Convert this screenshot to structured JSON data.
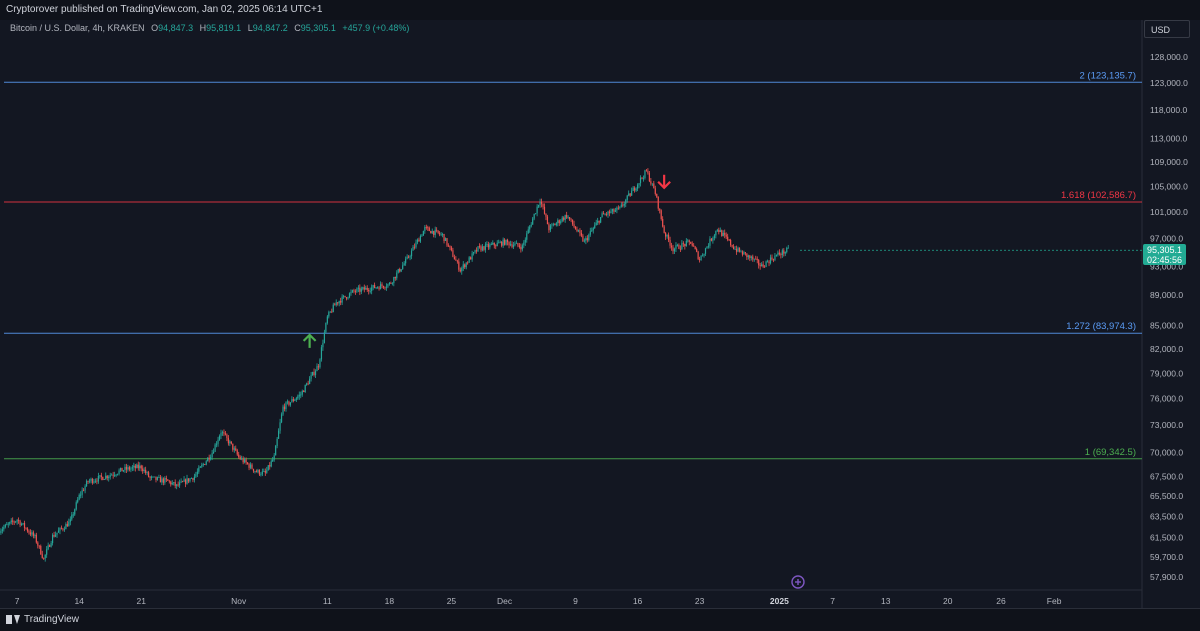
{
  "header": {
    "published_text": "Cryptorover published on TradingView.com, Jan 02, 2025 06:14 UTC+1"
  },
  "symbol": {
    "title": "Bitcoin / U.S. Dollar, 4h, KRAKEN",
    "open_key": "O",
    "open": "94,847.3",
    "high_key": "H",
    "high": "95,819.1",
    "low_key": "L",
    "low": "94,847.2",
    "close_key": "C",
    "close": "95,305.1",
    "change": "+457.9 (+0.48%)"
  },
  "price_axis": {
    "currency": "USD",
    "last_price": "95,305.1",
    "countdown": "02:45:56"
  },
  "footer": {
    "brand": "TradingView"
  },
  "colors": {
    "background": "#131722",
    "up": "#26a69a",
    "down": "#ef5350",
    "fib_blue": "#5b9cf6",
    "fib_red": "#f23645",
    "fib_green": "#4caf50",
    "arrow_up": "#4caf50",
    "arrow_down": "#f23645",
    "marker": "#7e57c2"
  },
  "chart_data": {
    "type": "candlestick",
    "title": "Bitcoin / U.S. Dollar, 4h, KRAKEN",
    "interval": "4h",
    "x_tick_labels": [
      "7",
      "14",
      "21",
      "Nov",
      "11",
      "18",
      "25",
      "Dec",
      "9",
      "16",
      "23",
      "2025",
      "7",
      "13",
      "20",
      "26",
      "Feb"
    ],
    "x_tick_dates": [
      "2024-10-07",
      "2024-10-14",
      "2024-10-21",
      "2024-11-01",
      "2024-11-11",
      "2024-11-18",
      "2024-11-25",
      "2024-12-01",
      "2024-12-09",
      "2024-12-16",
      "2024-12-23",
      "2025-01-01",
      "2025-01-07",
      "2025-01-13",
      "2025-01-20",
      "2025-01-26",
      "2025-02-01"
    ],
    "y_tick_labels": [
      "128,000.0",
      "123,000.0",
      "118,000.0",
      "113,000.0",
      "109,000.0",
      "105,000.0",
      "101,000.0",
      "97,000.0",
      "93,000.0",
      "89,000.0",
      "85,000.0",
      "82,000.0",
      "79,000.0",
      "76,000.0",
      "73,000.0",
      "70,000.0",
      "67,500.0",
      "65,500.0",
      "63,500.0",
      "61,500.0",
      "59,700.0",
      "57,900.0"
    ],
    "y_ticks": [
      128000,
      123000,
      118000,
      113000,
      109000,
      105000,
      101000,
      97000,
      93000,
      89000,
      85000,
      82000,
      79000,
      76000,
      73000,
      70000,
      67500,
      65500,
      63500,
      61500,
      59700,
      57900
    ],
    "y_scale": "log",
    "fib_levels": [
      {
        "label": "2 (123,135.7)",
        "value": 123135.7,
        "color": "#5b9cf6"
      },
      {
        "label": "1.618 (102,586.7)",
        "value": 102586.7,
        "color": "#f23645"
      },
      {
        "label": "1.272 (83,974.3)",
        "value": 83974.3,
        "color": "#5b9cf6"
      },
      {
        "label": "1 (69,342.5)",
        "value": 69342.5,
        "color": "#4caf50"
      }
    ],
    "close_path": [
      {
        "date": "2024-10-05",
        "close": 62200
      },
      {
        "date": "2024-10-07",
        "close": 63200
      },
      {
        "date": "2024-10-09",
        "close": 61500
      },
      {
        "date": "2024-10-10",
        "close": 59500
      },
      {
        "date": "2024-10-11",
        "close": 61600
      },
      {
        "date": "2024-10-13",
        "close": 63000
      },
      {
        "date": "2024-10-14",
        "close": 65500
      },
      {
        "date": "2024-10-15",
        "close": 67000
      },
      {
        "date": "2024-10-17",
        "close": 67500
      },
      {
        "date": "2024-10-19",
        "close": 68200
      },
      {
        "date": "2024-10-21",
        "close": 68500
      },
      {
        "date": "2024-10-22",
        "close": 67300
      },
      {
        "date": "2024-10-24",
        "close": 67000
      },
      {
        "date": "2024-10-25",
        "close": 66500
      },
      {
        "date": "2024-10-27",
        "close": 67500
      },
      {
        "date": "2024-10-29",
        "close": 70000
      },
      {
        "date": "2024-10-30",
        "close": 72300
      },
      {
        "date": "2024-10-31",
        "close": 71000
      },
      {
        "date": "2024-11-01",
        "close": 69500
      },
      {
        "date": "2024-11-03",
        "close": 68000
      },
      {
        "date": "2024-11-04",
        "close": 67800
      },
      {
        "date": "2024-11-05",
        "close": 69500
      },
      {
        "date": "2024-11-06",
        "close": 75000
      },
      {
        "date": "2024-11-08",
        "close": 76500
      },
      {
        "date": "2024-11-10",
        "close": 80000
      },
      {
        "date": "2024-11-11",
        "close": 86000
      },
      {
        "date": "2024-11-12",
        "close": 88000
      },
      {
        "date": "2024-11-14",
        "close": 89500
      },
      {
        "date": "2024-11-16",
        "close": 90000
      },
      {
        "date": "2024-11-18",
        "close": 90500
      },
      {
        "date": "2024-11-20",
        "close": 94000
      },
      {
        "date": "2024-11-22",
        "close": 98500
      },
      {
        "date": "2024-11-24",
        "close": 97500
      },
      {
        "date": "2024-11-26",
        "close": 92500
      },
      {
        "date": "2024-11-28",
        "close": 95500
      },
      {
        "date": "2024-12-01",
        "close": 96500
      },
      {
        "date": "2024-12-03",
        "close": 95800
      },
      {
        "date": "2024-12-05",
        "close": 103000
      },
      {
        "date": "2024-12-06",
        "close": 98500
      },
      {
        "date": "2024-12-08",
        "close": 100500
      },
      {
        "date": "2024-12-10",
        "close": 96500
      },
      {
        "date": "2024-12-12",
        "close": 100500
      },
      {
        "date": "2024-12-14",
        "close": 101500
      },
      {
        "date": "2024-12-16",
        "close": 105500
      },
      {
        "date": "2024-12-17",
        "close": 107500
      },
      {
        "date": "2024-12-18",
        "close": 104000
      },
      {
        "date": "2024-12-19",
        "close": 98000
      },
      {
        "date": "2024-12-20",
        "close": 95500
      },
      {
        "date": "2024-12-22",
        "close": 96500
      },
      {
        "date": "2024-12-23",
        "close": 94000
      },
      {
        "date": "2024-12-25",
        "close": 98500
      },
      {
        "date": "2024-12-27",
        "close": 95500
      },
      {
        "date": "2024-12-29",
        "close": 94000
      },
      {
        "date": "2024-12-30",
        "close": 93000
      },
      {
        "date": "2024-12-31",
        "close": 94000
      },
      {
        "date": "2025-01-01",
        "close": 94800
      },
      {
        "date": "2025-01-02",
        "close": 95305.1
      }
    ],
    "annotations": [
      {
        "type": "arrow-up",
        "date": "2024-11-09",
        "value": 83000
      },
      {
        "type": "arrow-down",
        "date": "2024-12-19",
        "value": 105800
      }
    ]
  }
}
